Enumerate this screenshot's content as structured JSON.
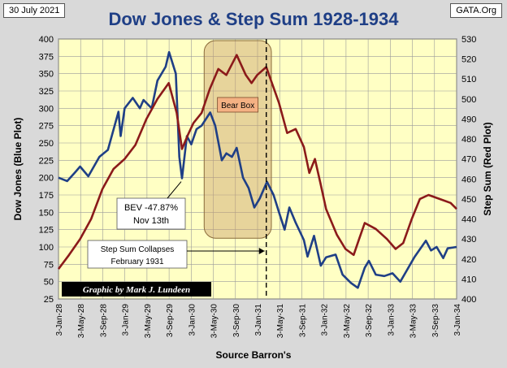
{
  "corner_labels": {
    "date": "30 July 2021",
    "source_site": "GATA.Org"
  },
  "chart_data": {
    "type": "line",
    "title": "Dow Jones & Step Sum 1928-1934",
    "xlabel": "Source Barron's",
    "ylabel_left": "Dow Jones   (Blue Plot)",
    "ylabel_right": "Step Sum   (Red Plot)",
    "ylim_left": [
      25,
      400
    ],
    "ylim_right": [
      400,
      530
    ],
    "yticks_left": [
      25,
      50,
      75,
      100,
      125,
      150,
      175,
      200,
      225,
      250,
      275,
      300,
      325,
      350,
      375,
      400
    ],
    "yticks_right": [
      400,
      410,
      420,
      430,
      440,
      450,
      460,
      470,
      480,
      490,
      500,
      510,
      520,
      530
    ],
    "xlim": [
      "1928-01-03",
      "1934-01-03"
    ],
    "x_tick_labels": [
      "3-Jan-28",
      "3-May-28",
      "3-Sep-28",
      "3-Jan-29",
      "3-May-29",
      "3-Sep-29",
      "3-Jan-30",
      "3-May-30",
      "3-Sep-30",
      "3-Jan-31",
      "3-May-31",
      "3-Sep-31",
      "3-Jan-32",
      "3-May-32",
      "3-Sep-32",
      "3-Jan-33",
      "3-May-33",
      "3-Sep-33",
      "3-Jan-34"
    ],
    "grid": true,
    "series": [
      {
        "name": "Dow Jones",
        "axis": "left",
        "color": "#1f3f86",
        "points": [
          [
            "1928-01-03",
            200
          ],
          [
            "1928-02-20",
            195
          ],
          [
            "1928-04-01",
            207
          ],
          [
            "1928-05-01",
            216
          ],
          [
            "1928-06-15",
            202
          ],
          [
            "1928-08-15",
            230
          ],
          [
            "1928-10-01",
            240
          ],
          [
            "1928-11-28",
            295
          ],
          [
            "1928-12-10",
            260
          ],
          [
            "1929-01-01",
            300
          ],
          [
            "1929-02-15",
            315
          ],
          [
            "1929-03-26",
            300
          ],
          [
            "1929-04-15",
            312
          ],
          [
            "1929-05-30",
            300
          ],
          [
            "1929-07-01",
            340
          ],
          [
            "1929-08-15",
            360
          ],
          [
            "1929-09-03",
            381
          ],
          [
            "1929-10-10",
            350
          ],
          [
            "1929-10-29",
            230
          ],
          [
            "1929-11-13",
            199
          ],
          [
            "1929-12-10",
            260
          ],
          [
            "1930-01-03",
            248
          ],
          [
            "1930-02-01",
            270
          ],
          [
            "1930-03-01",
            275
          ],
          [
            "1930-04-17",
            294
          ],
          [
            "1930-05-15",
            275
          ],
          [
            "1930-06-20",
            225
          ],
          [
            "1930-07-15",
            235
          ],
          [
            "1930-08-15",
            230
          ],
          [
            "1930-09-10",
            243
          ],
          [
            "1930-10-15",
            200
          ],
          [
            "1930-11-15",
            185
          ],
          [
            "1930-12-16",
            157
          ],
          [
            "1931-01-15",
            170
          ],
          [
            "1931-02-24",
            194
          ],
          [
            "1931-04-01",
            175
          ],
          [
            "1931-05-01",
            150
          ],
          [
            "1931-06-01",
            125
          ],
          [
            "1931-06-27",
            157
          ],
          [
            "1931-08-01",
            135
          ],
          [
            "1931-09-15",
            110
          ],
          [
            "1931-10-05",
            86
          ],
          [
            "1931-11-10",
            116
          ],
          [
            "1931-12-17",
            73
          ],
          [
            "1932-01-15",
            85
          ],
          [
            "1932-03-08",
            89
          ],
          [
            "1932-04-15",
            60
          ],
          [
            "1932-06-01",
            48
          ],
          [
            "1932-07-08",
            41
          ],
          [
            "1932-08-15",
            70
          ],
          [
            "1932-09-07",
            80
          ],
          [
            "1932-10-15",
            60
          ],
          [
            "1932-12-01",
            58
          ],
          [
            "1933-01-15",
            62
          ],
          [
            "1933-02-27",
            50
          ],
          [
            "1933-04-01",
            65
          ],
          [
            "1933-05-15",
            85
          ],
          [
            "1933-07-18",
            109
          ],
          [
            "1933-08-15",
            95
          ],
          [
            "1933-09-15",
            100
          ],
          [
            "1933-10-21",
            84
          ],
          [
            "1933-11-15",
            98
          ],
          [
            "1934-01-03",
            100
          ]
        ]
      },
      {
        "name": "Step Sum",
        "axis": "right",
        "color": "#8b1a1a",
        "points": [
          [
            "1928-01-03",
            415
          ],
          [
            "1928-03-01",
            422
          ],
          [
            "1928-05-01",
            430
          ],
          [
            "1928-07-01",
            440
          ],
          [
            "1928-09-01",
            455
          ],
          [
            "1928-11-01",
            465
          ],
          [
            "1929-01-01",
            470
          ],
          [
            "1929-03-01",
            477
          ],
          [
            "1929-05-01",
            490
          ],
          [
            "1929-07-01",
            500
          ],
          [
            "1929-09-01",
            508
          ],
          [
            "1929-10-15",
            493
          ],
          [
            "1929-11-13",
            475
          ],
          [
            "1929-12-15",
            482
          ],
          [
            "1930-01-15",
            488
          ],
          [
            "1930-03-01",
            493
          ],
          [
            "1930-04-15",
            505
          ],
          [
            "1930-06-01",
            515
          ],
          [
            "1930-07-15",
            512
          ],
          [
            "1930-09-10",
            522
          ],
          [
            "1930-10-30",
            512
          ],
          [
            "1930-12-01",
            508
          ],
          [
            "1931-01-01",
            512
          ],
          [
            "1931-02-20",
            516
          ],
          [
            "1931-03-15",
            510
          ],
          [
            "1931-05-01",
            498
          ],
          [
            "1931-06-15",
            483
          ],
          [
            "1931-08-01",
            485
          ],
          [
            "1931-09-15",
            476
          ],
          [
            "1931-10-15",
            463
          ],
          [
            "1931-11-15",
            470
          ],
          [
            "1931-12-15",
            458
          ],
          [
            "1932-01-15",
            445
          ],
          [
            "1932-03-15",
            432
          ],
          [
            "1932-05-01",
            425
          ],
          [
            "1932-06-15",
            422
          ],
          [
            "1932-07-15",
            430
          ],
          [
            "1932-08-15",
            438
          ],
          [
            "1932-10-15",
            435
          ],
          [
            "1932-12-15",
            430
          ],
          [
            "1933-02-01",
            425
          ],
          [
            "1933-03-15",
            428
          ],
          [
            "1933-05-01",
            440
          ],
          [
            "1933-06-15",
            450
          ],
          [
            "1933-08-01",
            452
          ],
          [
            "1933-10-01",
            450
          ],
          [
            "1933-12-01",
            448
          ],
          [
            "1934-01-03",
            445
          ]
        ]
      }
    ],
    "annotations": {
      "bear_box": {
        "label": "Bear Box",
        "x_start": "1930-03-15",
        "x_end": "1931-03-20",
        "y_top": 400,
        "y_bottom": 115
      },
      "bev_note": {
        "line1": "BEV -47.87%",
        "line2": "Nov 13th",
        "point": [
          "1929-11-13",
          199
        ]
      },
      "collapse_note": {
        "line1": "Step Sum Collapses",
        "line2": "February 1931",
        "point": [
          "1931-02-20",
          105
        ]
      },
      "vline": {
        "x": "1931-02-20"
      },
      "credit": "Graphic by Mark J. Lundeen"
    }
  }
}
